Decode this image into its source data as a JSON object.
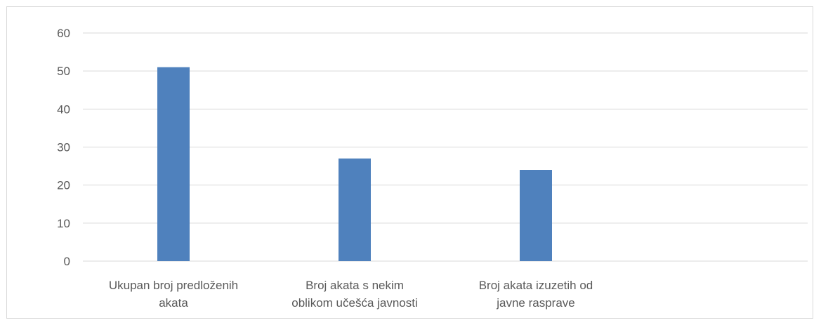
{
  "chart_data": {
    "type": "bar",
    "categories": [
      [
        "Ukupan broj predloženih",
        "akata"
      ],
      [
        "Broj akata s nekim",
        "oblikom učešća javnosti"
      ],
      [
        "Broj akata izuzetih od",
        "javne rasprave"
      ],
      [
        ""
      ]
    ],
    "values": [
      51,
      27,
      24,
      null
    ],
    "ylim": [
      0,
      60
    ],
    "yticks": [
      0,
      10,
      20,
      30,
      40,
      50,
      60
    ],
    "grid": true,
    "legend": "none",
    "bar_color": "#4f81bd",
    "grid_color": "#d9d9d9",
    "title": "",
    "xlabel": "",
    "ylabel": ""
  }
}
